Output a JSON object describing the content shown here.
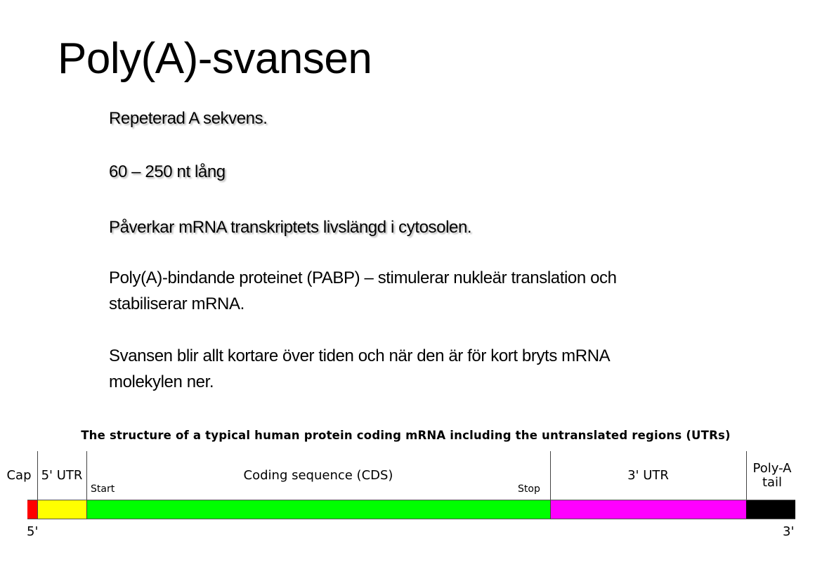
{
  "slide": {
    "title": "Poly(A)-svansen",
    "paragraphs": [
      "Repeterad A sekvens.",
      "60 – 250 nt lång",
      "Påverkar mRNA transkriptets livslängd i cytosolen.",
      "Poly(A)-bindande proteinet (PABP) – stimulerar nukleär translation och stabiliserar mRNA.",
      "Svansen blir allt kortare över tiden och när den är för kort bryts mRNA molekylen ner."
    ]
  },
  "diagram": {
    "title": "The structure of a typical human protein coding mRNA including the untranslated regions (UTRs)",
    "regions": [
      {
        "label": "Cap",
        "color": "#ff0000"
      },
      {
        "label": "5' UTR",
        "color": "#ffff00"
      },
      {
        "label": "Coding sequence (CDS)",
        "color": "#00ff00"
      },
      {
        "label": "3' UTR",
        "color": "#ff00ff"
      },
      {
        "label": "Poly-A tail",
        "color": "#000000"
      }
    ],
    "start_label": "Start",
    "stop_label": "Stop",
    "five_prime": "5'",
    "three_prime": "3'"
  }
}
